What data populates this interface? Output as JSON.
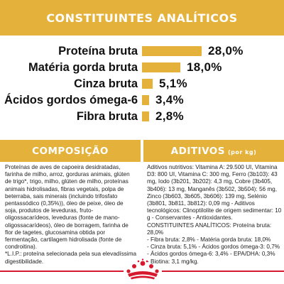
{
  "header": {
    "title": "CONSTITUINTES ANALÍTICOS"
  },
  "analytics": [
    {
      "label": "Proteína bruta",
      "value": "28,0%",
      "percent": 28.0
    },
    {
      "label": "Matéria gorda bruta",
      "value": "18,0%",
      "percent": 18.0
    },
    {
      "label": "Cinza bruta",
      "value": "5,1%",
      "percent": 5.1
    },
    {
      "label": "Ácidos gordos ómega-6",
      "value": "3,4%",
      "percent": 3.4
    },
    {
      "label": "Fibra bruta",
      "value": "2,8%",
      "percent": 2.8
    }
  ],
  "composition": {
    "title": "COMPOSIÇÃO",
    "text": "Proteínas de aves de capoeira desidratadas, farinha de milho, arroz, gorduras animais, glúten de trigo*, trigo, milho, glúten de milho, proteínas animais hidrolisadas, fibras vegetais, polpa de beterraba, sais minerais (incluindo trifosfato pentassódico (0,35%)), óleo de peixe, óleo de soja, produtos de leveduras, fruto-oligossacarídeos, leveduras (fonte de mano-oligossacarídeos), óleo de borragem, farinha de flor de tagetes, glucosamina obtida por fermentação, cartilagem hidrolisada (fonte de condroitina).",
    "footnote": "*L.I.P.: proteína selecionada pela sua elevadíssima digestibilidade."
  },
  "additives": {
    "title": "ADITIVOS",
    "unit": "(por kg)",
    "nutritional": "Aditivos nutritivos: Vitamina A: 29.500 UI, Vitamina D3: 800 UI, Vitamina C: 300 mg, Ferro (3b103): 43 mg, Iodo (3b201, 3b202): 4,3 mg, Cobre (3b405, 3b406): 13 mg, Manganês (3b502, 3b504): 56 mg, Zinco (3b603, 3b605, 3b606): 139 mg, Selénio (3b801, 3b811, 3b812): 0,09 mg - Aditivos tecnológicos: Clinoptilolite de origem sedimentar: 10 g - Conservantes - Antioxidantes.",
    "constituents_title": "CONSTITUINTES ANALÍTICOS: Proteína bruta: 28,0%",
    "constituents_lines": [
      "- Fibra bruta: 2,8% - Matéria gorda bruta: 18,0%",
      "- Cinza bruta: 5,1% - Ácidos gordos ómega-3: 0,7%",
      "- Ácidos gordos ómega-6: 3,4% - EPA/DHA: 0,3%",
      "- Biotina: 3,1 mg/kg."
    ]
  },
  "footer": {
    "logo_icon": "royal-canin-crown-icon",
    "accent_color": "#d7192d"
  },
  "colors": {
    "brand_yellow": "#e4b23a",
    "text": "#111111"
  }
}
